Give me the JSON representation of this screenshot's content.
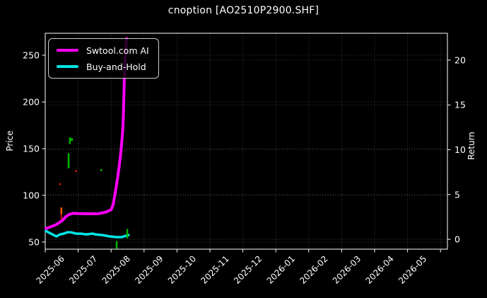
{
  "title": "cnoption [AO2510P2900.SHF]",
  "colors": {
    "background": "#000000",
    "text": "#ffffff",
    "grid": "rgba(255,255,255,0.32)",
    "spine": "#ffffff",
    "ai_line": "#ff00ff",
    "bh_line": "#00e5e5",
    "buy_mark_green": "#00b300",
    "sell_mark_red": "#c81400"
  },
  "chart_data": {
    "type": "line",
    "title": "cnoption [AO2510P2900.SHF]",
    "grid": true,
    "legend_position": "upper left",
    "x_axis": {
      "tick_labels": [
        "2025-06",
        "2025-07",
        "2025-08",
        "2025-09",
        "2025-10",
        "2025-11",
        "2025-12",
        "2026-01",
        "2026-02",
        "2026-03",
        "2026-04",
        "2026-05"
      ],
      "range": [
        0,
        12.21
      ],
      "unit": "months since 2025-06-01",
      "label_rotation_deg": 45
    },
    "y_left": {
      "label": "Price",
      "ticks": [
        50,
        100,
        150,
        200,
        250
      ],
      "range": [
        42.4,
        273.5
      ]
    },
    "y_right": {
      "label": "Return",
      "ticks": [
        0,
        5,
        10,
        15,
        20
      ],
      "range": [
        -1.1,
        23.0
      ]
    },
    "series": [
      {
        "name": "Swtool.com AI",
        "axis": "right",
        "color": "#ff00ff",
        "width": 4,
        "points": [
          [
            0.02,
            1.2
          ],
          [
            0.17,
            1.4
          ],
          [
            0.34,
            1.65
          ],
          [
            0.52,
            2.1
          ],
          [
            0.62,
            2.5
          ],
          [
            0.71,
            2.75
          ],
          [
            0.84,
            2.9
          ],
          [
            1.03,
            2.87
          ],
          [
            1.31,
            2.85
          ],
          [
            1.59,
            2.85
          ],
          [
            1.67,
            2.9
          ],
          [
            1.85,
            3.05
          ],
          [
            2.0,
            3.3
          ],
          [
            2.06,
            3.85
          ],
          [
            2.12,
            5.1
          ],
          [
            2.19,
            6.7
          ],
          [
            2.25,
            8.3
          ],
          [
            2.3,
            9.9
          ],
          [
            2.34,
            11.5
          ],
          [
            2.36,
            12.6
          ],
          [
            2.38,
            14.9
          ],
          [
            2.4,
            17.6
          ],
          [
            2.42,
            20.0
          ],
          [
            2.47,
            22.4
          ]
        ]
      },
      {
        "name": "Buy-and-Hold",
        "axis": "right",
        "color": "#00e5e5",
        "width": 3.5,
        "points": [
          [
            0.02,
            0.95
          ],
          [
            0.13,
            0.71
          ],
          [
            0.26,
            0.47
          ],
          [
            0.34,
            0.32
          ],
          [
            0.45,
            0.55
          ],
          [
            0.56,
            0.63
          ],
          [
            0.67,
            0.79
          ],
          [
            0.77,
            0.79
          ],
          [
            0.94,
            0.63
          ],
          [
            1.09,
            0.63
          ],
          [
            1.24,
            0.55
          ],
          [
            1.44,
            0.63
          ],
          [
            1.52,
            0.55
          ],
          [
            1.74,
            0.47
          ],
          [
            1.95,
            0.32
          ],
          [
            2.17,
            0.24
          ],
          [
            2.32,
            0.24
          ],
          [
            2.45,
            0.4
          ],
          [
            2.53,
            0.47
          ]
        ]
      }
    ],
    "trade_marks": [
      {
        "x": 0.75,
        "price": [
          155,
          162
        ],
        "color": "#00b300",
        "shape": "flag"
      },
      {
        "x": 0.71,
        "price": [
          129,
          145
        ],
        "color": "#00b300",
        "shape": "bar"
      },
      {
        "x": 0.45,
        "price": [
          111,
          113
        ],
        "color": "#c81400",
        "shape": "dot"
      },
      {
        "x": 0.94,
        "price": [
          125,
          127
        ],
        "color": "#c81400",
        "shape": "dot"
      },
      {
        "x": 1.7,
        "price": [
          126,
          128
        ],
        "color": "#00b300",
        "shape": "dot"
      },
      {
        "x": 0.49,
        "price": [
          80,
          87
        ],
        "color": "#ff5a00",
        "shape": "bar"
      },
      {
        "x": 0.49,
        "price": [
          71,
          80
        ],
        "color": "#a01000",
        "shape": "bar"
      },
      {
        "x": 2.17,
        "price": [
          43,
          51
        ],
        "color": "#00b300",
        "shape": "bar"
      },
      {
        "x": 2.49,
        "price": [
          54,
          64
        ],
        "color": "#00b300",
        "shape": "bar"
      }
    ]
  }
}
